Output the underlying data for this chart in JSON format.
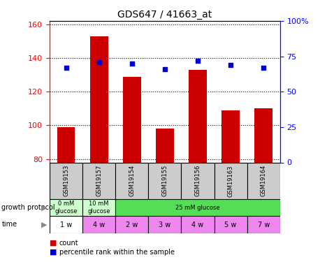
{
  "title": "GDS647 / 41663_at",
  "samples": [
    "GSM19153",
    "GSM19157",
    "GSM19154",
    "GSM19155",
    "GSM19156",
    "GSM19163",
    "GSM19164"
  ],
  "bar_values": [
    99,
    153,
    129,
    98,
    133,
    109,
    110
  ],
  "dot_values": [
    67,
    71,
    70,
    66,
    72,
    69,
    67
  ],
  "ylim_left": [
    78,
    162
  ],
  "ylim_right": [
    0,
    100
  ],
  "yticks_left": [
    80,
    100,
    120,
    140,
    160
  ],
  "yticks_right": [
    0,
    25,
    50,
    75,
    100
  ],
  "ytick_labels_right": [
    "0",
    "25",
    "50",
    "75",
    "100%"
  ],
  "bar_color": "#cc0000",
  "dot_color": "#0000cc",
  "bar_bottom": 78,
  "growth_protocol_merged": [
    {
      "label": "0 mM\nglucose",
      "span": 1,
      "color": "#ccffcc"
    },
    {
      "label": "10 mM\nglucose",
      "span": 1,
      "color": "#ccffcc"
    },
    {
      "label": "25 mM glucose",
      "span": 5,
      "color": "#55dd55"
    }
  ],
  "time_labels": [
    "1 w",
    "4 w",
    "2 w",
    "3 w",
    "4 w",
    "5 w",
    "7 w"
  ],
  "time_colors": [
    "#ffffff",
    "#ee88ee",
    "#ee88ee",
    "#ee88ee",
    "#ee88ee",
    "#ee88ee",
    "#ee88ee"
  ],
  "sample_bg_color": "#cccccc",
  "legend_count_color": "#cc0000",
  "legend_dot_color": "#0000cc"
}
